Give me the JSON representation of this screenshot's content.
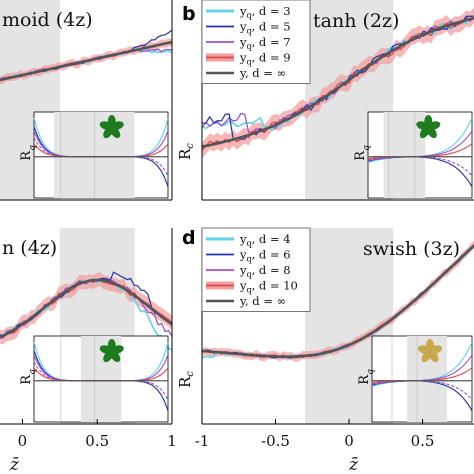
{
  "chart_data": [
    {
      "id": "a",
      "type": "line",
      "panel_label": "",
      "title": "moid (4z)",
      "x": [
        -0.15,
        -0.1,
        -0.05,
        0,
        0.05,
        0.1,
        0.15,
        0.2,
        0.25,
        0.3,
        0.35,
        0.4,
        0.45,
        0.5,
        0.55,
        0.6,
        0.65,
        0.7,
        0.75,
        0.8,
        0.85,
        0.9,
        0.95,
        1.0
      ],
      "series": [
        {
          "key": "y_inf",
          "values": [
            0.15,
            0.17,
            0.19,
            0.21,
            0.23,
            0.25,
            0.27,
            0.29,
            0.31,
            0.33,
            0.35,
            0.37,
            0.39,
            0.41,
            0.43,
            0.45,
            0.47,
            0.49,
            0.51,
            0.53,
            0.55,
            0.57,
            0.59,
            0.6
          ]
        },
        {
          "key": "d_small",
          "values": [
            0.14,
            0.18,
            0.18,
            0.22,
            0.22,
            0.26,
            0.26,
            0.3,
            0.31,
            0.34,
            0.34,
            0.38,
            0.39,
            0.42,
            0.44,
            0.46,
            0.49,
            0.52,
            0.55,
            0.57,
            0.55,
            0.52,
            0.5,
            0.49
          ]
        },
        {
          "key": "d_large",
          "values": [
            0.16,
            0.16,
            0.2,
            0.2,
            0.24,
            0.24,
            0.28,
            0.29,
            0.3,
            0.32,
            0.36,
            0.36,
            0.4,
            0.4,
            0.45,
            0.47,
            0.5,
            0.55,
            0.58,
            0.62,
            0.66,
            0.68,
            0.65,
            0.62
          ]
        }
      ],
      "xticks": [],
      "xtick_labels": [],
      "shade": [
        -0.2,
        0.25
      ],
      "inset_shade": [
        0.15,
        0.75
      ],
      "star_color": "#1e7b1e"
    },
    {
      "id": "b",
      "type": "line",
      "panel_label": "b",
      "title": "tanh (2z)",
      "ylabel": "R",
      "ylabel_sub": "c",
      "legend": [
        {
          "label": "y",
          "sub": "q",
          "suffix": ", d = 3",
          "color": "#5fd3e8"
        },
        {
          "label": "y",
          "sub": "q",
          "suffix": ", d = 5",
          "color": "#2233aa"
        },
        {
          "label": "y",
          "sub": "q",
          "suffix": ", d = 7",
          "color": "#a050c8"
        },
        {
          "label": "y",
          "sub": "q",
          "suffix": ", d = 9",
          "color": "#e04848"
        },
        {
          "label": "y",
          "sub": "",
          "suffix": ", d = ∞",
          "color": "#555555"
        }
      ],
      "shade": [
        -0.3,
        0.3
      ],
      "inset_shade": [
        0.15,
        0.55
      ],
      "star_color": "#1e7b1e"
    },
    {
      "id": "c",
      "type": "line",
      "panel_label": "",
      "title": "n (4z)",
      "xlabel": "z̄",
      "xtick_labels": [
        "0",
        "0.5",
        "1"
      ],
      "shade": [
        0.25,
        0.75
      ],
      "inset_shade": [
        0.35,
        0.65
      ],
      "star_color": "#1e7b1e"
    },
    {
      "id": "d",
      "type": "line",
      "panel_label": "d",
      "title": "swish (3z)",
      "xlabel": "z̄",
      "ylabel": "R",
      "ylabel_sub": "c",
      "xtick_labels": [
        "-1",
        "-0.5",
        "0",
        "0.5"
      ],
      "legend": [
        {
          "label": "y",
          "sub": "q",
          "suffix": ", d = 4",
          "color": "#5fd3e8"
        },
        {
          "label": "y",
          "sub": "q",
          "suffix": ", d = 6",
          "color": "#2233aa"
        },
        {
          "label": "y",
          "sub": "q",
          "suffix": ", d = 8",
          "color": "#a050c8"
        },
        {
          "label": "y",
          "sub": "q",
          "suffix": ", d = 10",
          "color": "#e04848"
        },
        {
          "label": "y",
          "sub": "",
          "suffix": ", d = ∞",
          "color": "#555555"
        }
      ],
      "shade": [
        -0.3,
        0.3
      ],
      "inset_shade": [
        0.35,
        0.75
      ],
      "star_color": "#c9a84a"
    }
  ],
  "inset_ylabel": "R",
  "inset_ylabel_sub": "q",
  "colors": {
    "cyan": "#5fd3e8",
    "blue": "#2233aa",
    "purple": "#a050c8",
    "red": "#e04848",
    "red_band": "#f0a0a0",
    "gray": "#555555",
    "shade": "#e4e4e4"
  }
}
